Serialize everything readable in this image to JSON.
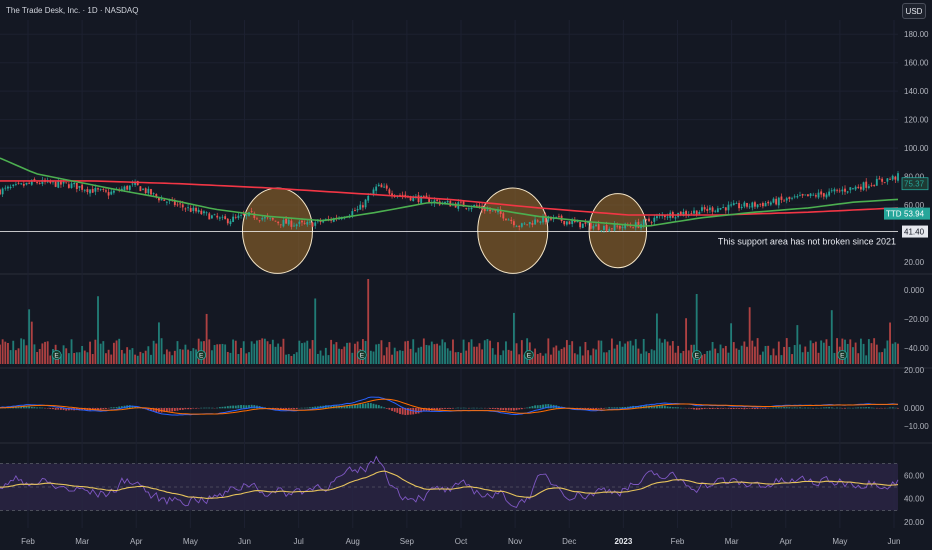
{
  "header": {
    "title": "The Trade Desk, Inc. · 1D · NASDAQ",
    "currency_button": "USD"
  },
  "colors": {
    "background": "#141823",
    "up": "#26a69a",
    "down": "#ef5350",
    "ma_short": "#4caf50",
    "ma_long": "#f23645",
    "support_line": "#ffffff",
    "highlight_fill": "#a0702a",
    "macd_line": "#2962ff",
    "signal_line": "#ff6d00",
    "rsi_line": "#7e57c2",
    "rsi_ma": "#e6c35c",
    "rsi_band": "#2a2545"
  },
  "chart_data": [
    {
      "type": "candlestick",
      "title": "The Trade Desk, Inc. · 1D · NASDAQ",
      "x_ticks": [
        "Feb",
        "Mar",
        "Apr",
        "May",
        "Jun",
        "Jul",
        "Aug",
        "Sep",
        "Oct",
        "Nov",
        "Dec",
        "2023",
        "Feb",
        "Mar",
        "Apr",
        "May",
        "Jun"
      ],
      "y_ticks": [
        180,
        160,
        140,
        120,
        100,
        80,
        60
      ],
      "ylim": [
        20,
        190
      ],
      "price_close_path": [
        [
          0,
          70
        ],
        [
          0.04,
          76
        ],
        [
          0.08,
          74
        ],
        [
          0.12,
          68
        ],
        [
          0.15,
          74
        ],
        [
          0.18,
          64
        ],
        [
          0.22,
          55
        ],
        [
          0.25,
          49
        ],
        [
          0.28,
          53
        ],
        [
          0.31,
          48
        ],
        [
          0.34,
          46
        ],
        [
          0.37,
          50
        ],
        [
          0.4,
          57
        ],
        [
          0.42,
          73
        ],
        [
          0.44,
          68
        ],
        [
          0.47,
          64
        ],
        [
          0.5,
          61
        ],
        [
          0.53,
          59
        ],
        [
          0.56,
          53
        ],
        [
          0.58,
          45
        ],
        [
          0.6,
          50
        ],
        [
          0.62,
          50
        ],
        [
          0.65,
          46
        ],
        [
          0.68,
          44
        ],
        [
          0.71,
          46
        ],
        [
          0.74,
          53
        ],
        [
          0.77,
          55
        ],
        [
          0.8,
          58
        ],
        [
          0.84,
          60
        ],
        [
          0.88,
          64
        ],
        [
          0.92,
          68
        ],
        [
          0.95,
          72
        ],
        [
          1.0,
          80
        ]
      ],
      "ma_short_path": [
        [
          0,
          93
        ],
        [
          0.04,
          82
        ],
        [
          0.08,
          77
        ],
        [
          0.12,
          72
        ],
        [
          0.18,
          65
        ],
        [
          0.24,
          57
        ],
        [
          0.3,
          52
        ],
        [
          0.36,
          49
        ],
        [
          0.42,
          55
        ],
        [
          0.48,
          62
        ],
        [
          0.54,
          58
        ],
        [
          0.6,
          52
        ],
        [
          0.66,
          48
        ],
        [
          0.72,
          45
        ],
        [
          0.78,
          51
        ],
        [
          0.84,
          55
        ],
        [
          0.9,
          58
        ],
        [
          0.95,
          62
        ],
        [
          1.0,
          64
        ]
      ],
      "ma_long_path": [
        [
          0,
          77
        ],
        [
          0.1,
          77
        ],
        [
          0.2,
          75
        ],
        [
          0.3,
          72
        ],
        [
          0.4,
          68
        ],
        [
          0.5,
          64
        ],
        [
          0.6,
          58
        ],
        [
          0.7,
          53
        ],
        [
          0.8,
          53
        ],
        [
          0.9,
          55
        ],
        [
          1.0,
          58
        ]
      ],
      "series": [
        {
          "name": "TTD",
          "last_value": "53.94"
        },
        {
          "last_value": "75.37"
        }
      ],
      "support_level": {
        "value": 41.4,
        "label": "41.40"
      },
      "annotation": "This support area has not broken since 2021",
      "highlight_circles": [
        {
          "x_center": 0.309,
          "y_center": 42,
          "rx": 0.039,
          "ry": 30
        },
        {
          "x_center": 0.571,
          "y_center": 42,
          "rx": 0.039,
          "ry": 30
        },
        {
          "x_center": 0.688,
          "y_center": 42,
          "rx": 0.032,
          "ry": 26
        }
      ]
    },
    {
      "type": "bar",
      "title": "Volume",
      "y_ticks": [
        "0.000",
        "−20.00",
        "−40.00"
      ],
      "earnings_markers": [
        "E",
        "E",
        "E",
        "E",
        "E",
        "E"
      ]
    },
    {
      "type": "line",
      "title": "MACD",
      "y_ticks": [
        "20.00",
        "0.000",
        "−10.00"
      ]
    },
    {
      "type": "line",
      "title": "RSI",
      "y_ticks": [
        "60.00",
        "40.00",
        "20.00"
      ],
      "ylim": [
        15,
        85
      ],
      "bands": [
        70,
        50,
        30
      ]
    }
  ]
}
